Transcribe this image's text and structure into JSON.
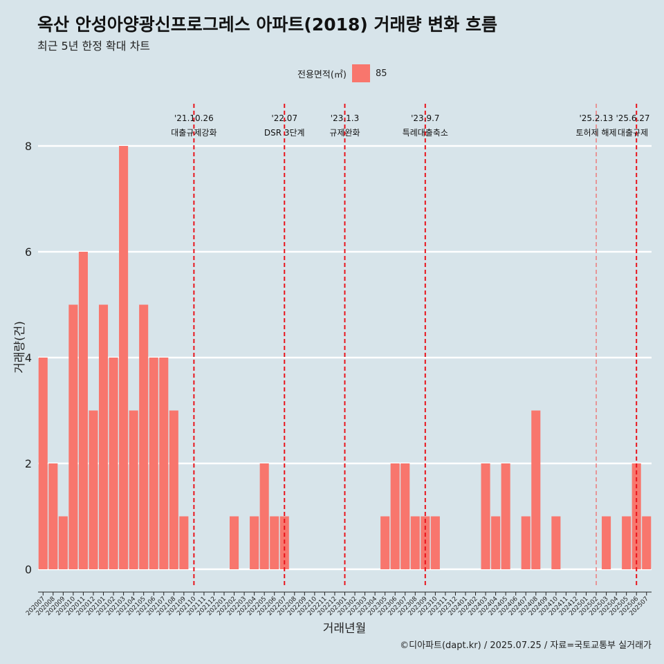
{
  "chart_data": {
    "type": "bar",
    "title": "옥산 안성아양광신프로그레스 아파트(2018) 거래량 변화 흐름",
    "subtitle": "최근 5년 한정 확대 차트",
    "xlabel": "거래년월",
    "ylabel": "거래량(건)",
    "legend_title": "전용면적(㎡)",
    "legend_position": "top",
    "caption": "©디아파트(dapt.kr) / 2025.07.25 / 자료=국토교통부 실거래가",
    "ylim": [
      0,
      8
    ],
    "yticks": [
      0,
      2,
      4,
      6,
      8
    ],
    "grid": true,
    "categories": [
      "202007",
      "202008",
      "202009",
      "202010",
      "202011",
      "202012",
      "202101",
      "202102",
      "202103",
      "202104",
      "202105",
      "202106",
      "202107",
      "202108",
      "202109",
      "202110",
      "202111",
      "202112",
      "202201",
      "202202",
      "202203",
      "202204",
      "202205",
      "202206",
      "202207",
      "202208",
      "202209",
      "202210",
      "202211",
      "202212",
      "202301",
      "202302",
      "202303",
      "202304",
      "202305",
      "202306",
      "202307",
      "202308",
      "202309",
      "202310",
      "202311",
      "202312",
      "202401",
      "202402",
      "202403",
      "202404",
      "202405",
      "202406",
      "202407",
      "202408",
      "202409",
      "202410",
      "202411",
      "202412",
      "202501",
      "202502",
      "202503",
      "202504",
      "202505",
      "202506",
      "202507"
    ],
    "series": [
      {
        "name": "85",
        "color": "#f8766d",
        "values": [
          4,
          2,
          1,
          5,
          6,
          3,
          5,
          4,
          8,
          3,
          5,
          4,
          4,
          3,
          1,
          0,
          0,
          0,
          0,
          1,
          0,
          1,
          2,
          1,
          1,
          0,
          0,
          0,
          0,
          0,
          0,
          0,
          0,
          0,
          1,
          2,
          2,
          1,
          1,
          1,
          0,
          0,
          0,
          0,
          2,
          1,
          2,
          0,
          1,
          3,
          0,
          1,
          0,
          0,
          0,
          0,
          1,
          0,
          1,
          2,
          1
        ]
      }
    ],
    "annotations": [
      {
        "x": "202110",
        "date": "'21.10.26",
        "label": "대출규제강화",
        "style": "dashed",
        "color": "#e8141c"
      },
      {
        "x": "202207",
        "date": "'22.07",
        "label": "DSR 3단계",
        "style": "dashed",
        "color": "#e8141c"
      },
      {
        "x": "202301",
        "date": "'23.1.3",
        "label": "규제완화",
        "style": "dashed",
        "color": "#e8141c"
      },
      {
        "x": "202309",
        "date": "'23.9.7",
        "label": "특례대출축소",
        "style": "dashed",
        "color": "#e8141c"
      },
      {
        "x": "202502",
        "date": "'25.2.13",
        "label": "토허제 해제",
        "style": "dashed-thin",
        "color": "#f06060"
      },
      {
        "x": "202506",
        "date": "'25.6.27",
        "label": "대출규제",
        "style": "dashed",
        "color": "#e8141c"
      }
    ]
  }
}
